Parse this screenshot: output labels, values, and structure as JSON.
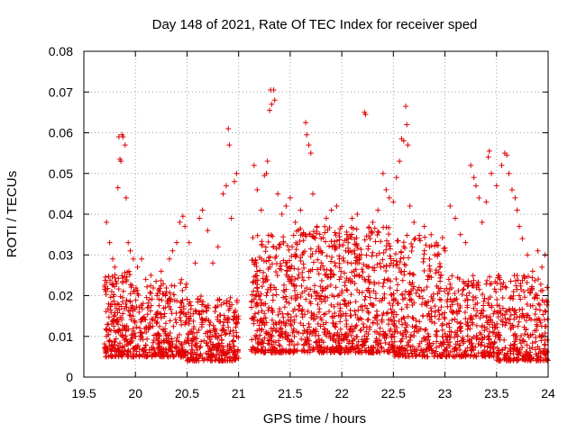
{
  "chart_data": {
    "type": "scatter",
    "title": "Day 148 of 2021, Rate Of TEC Index for receiver sped",
    "xlabel": "GPS time / hours",
    "ylabel": "ROTI / TECUs",
    "xlim": [
      19.5,
      24
    ],
    "ylim": [
      0,
      0.08
    ],
    "xticks": [
      19.5,
      20,
      20.5,
      21,
      21.5,
      22,
      22.5,
      23,
      23.5,
      24
    ],
    "xtick_labels": [
      "19.5",
      "20",
      "20.5",
      "21",
      "21.5",
      "22",
      "22.5",
      "23",
      "23.5",
      "24"
    ],
    "yticks": [
      0,
      0.01,
      0.02,
      0.03,
      0.04,
      0.05,
      0.06,
      0.07,
      0.08
    ],
    "ytick_labels": [
      "0",
      "0.01",
      "0.02",
      "0.03",
      "0.04",
      "0.05",
      "0.06",
      "0.07",
      "0.08"
    ],
    "grid": true,
    "marker": "+",
    "color": "#e00000",
    "gap": [
      21.0,
      21.12
    ],
    "series": [
      {
        "name": "ROTI",
        "points": [
          [
            19.72,
            0.038
          ],
          [
            19.75,
            0.033
          ],
          [
            19.78,
            0.029
          ],
          [
            19.8,
            0.027
          ],
          [
            19.83,
            0.0465
          ],
          [
            19.84,
            0.059
          ],
          [
            19.85,
            0.0535
          ],
          [
            19.86,
            0.053
          ],
          [
            19.87,
            0.0595
          ],
          [
            19.88,
            0.059
          ],
          [
            19.9,
            0.057
          ],
          [
            19.91,
            0.044
          ],
          [
            19.93,
            0.033
          ],
          [
            19.95,
            0.031
          ],
          [
            19.98,
            0.029
          ],
          [
            20.02,
            0.027
          ],
          [
            20.06,
            0.029
          ],
          [
            20.1,
            0.024
          ],
          [
            20.15,
            0.025
          ],
          [
            20.2,
            0.0235
          ],
          [
            20.25,
            0.026
          ],
          [
            20.3,
            0.021
          ],
          [
            20.33,
            0.029
          ],
          [
            20.36,
            0.031
          ],
          [
            20.4,
            0.033
          ],
          [
            20.43,
            0.038
          ],
          [
            20.46,
            0.0395
          ],
          [
            20.48,
            0.037
          ],
          [
            20.52,
            0.033
          ],
          [
            20.58,
            0.028
          ],
          [
            20.62,
            0.039
          ],
          [
            20.65,
            0.041
          ],
          [
            20.7,
            0.036
          ],
          [
            20.75,
            0.028
          ],
          [
            20.8,
            0.032
          ],
          [
            20.85,
            0.045
          ],
          [
            20.88,
            0.047
          ],
          [
            20.9,
            0.061
          ],
          [
            20.91,
            0.057
          ],
          [
            20.93,
            0.039
          ],
          [
            20.96,
            0.048
          ],
          [
            20.98,
            0.05
          ],
          [
            21.15,
            0.052
          ],
          [
            21.18,
            0.046
          ],
          [
            21.22,
            0.041
          ],
          [
            21.25,
            0.0495
          ],
          [
            21.27,
            0.05
          ],
          [
            21.28,
            0.053
          ],
          [
            21.3,
            0.0655
          ],
          [
            21.31,
            0.0705
          ],
          [
            21.32,
            0.067
          ],
          [
            21.34,
            0.0705
          ],
          [
            21.35,
            0.068
          ],
          [
            21.38,
            0.045
          ],
          [
            21.42,
            0.04
          ],
          [
            21.46,
            0.042
          ],
          [
            21.5,
            0.044
          ],
          [
            21.55,
            0.038
          ],
          [
            21.6,
            0.041
          ],
          [
            21.65,
            0.0625
          ],
          [
            21.66,
            0.0595
          ],
          [
            21.68,
            0.057
          ],
          [
            21.7,
            0.055
          ],
          [
            21.72,
            0.045
          ],
          [
            21.76,
            0.037
          ],
          [
            21.8,
            0.034
          ],
          [
            21.85,
            0.039
          ],
          [
            21.9,
            0.041
          ],
          [
            21.95,
            0.042
          ],
          [
            22.0,
            0.037
          ],
          [
            22.05,
            0.035
          ],
          [
            22.1,
            0.039
          ],
          [
            22.15,
            0.04
          ],
          [
            22.22,
            0.065
          ],
          [
            22.23,
            0.0645
          ],
          [
            22.3,
            0.038
          ],
          [
            22.35,
            0.041
          ],
          [
            22.4,
            0.05
          ],
          [
            22.43,
            0.046
          ],
          [
            22.46,
            0.044
          ],
          [
            22.5,
            0.043
          ],
          [
            22.53,
            0.049
          ],
          [
            22.56,
            0.053
          ],
          [
            22.58,
            0.0585
          ],
          [
            22.6,
            0.058
          ],
          [
            22.62,
            0.0665
          ],
          [
            22.63,
            0.062
          ],
          [
            22.64,
            0.057
          ],
          [
            22.66,
            0.042
          ],
          [
            22.7,
            0.038
          ],
          [
            22.75,
            0.034
          ],
          [
            22.8,
            0.037
          ],
          [
            22.85,
            0.032
          ],
          [
            22.9,
            0.03
          ],
          [
            22.95,
            0.027
          ],
          [
            23.0,
            0.031
          ],
          [
            23.05,
            0.042
          ],
          [
            23.1,
            0.039
          ],
          [
            23.15,
            0.035
          ],
          [
            23.2,
            0.033
          ],
          [
            23.25,
            0.052
          ],
          [
            23.28,
            0.049
          ],
          [
            23.3,
            0.047
          ],
          [
            23.33,
            0.044
          ],
          [
            23.36,
            0.038
          ],
          [
            23.4,
            0.043
          ],
          [
            23.42,
            0.054
          ],
          [
            23.43,
            0.0555
          ],
          [
            23.45,
            0.05
          ],
          [
            23.5,
            0.047
          ],
          [
            23.55,
            0.052
          ],
          [
            23.58,
            0.055
          ],
          [
            23.6,
            0.0545
          ],
          [
            23.62,
            0.05
          ],
          [
            23.65,
            0.046
          ],
          [
            23.68,
            0.044
          ],
          [
            23.7,
            0.041
          ],
          [
            23.72,
            0.037
          ],
          [
            23.75,
            0.034
          ],
          [
            23.8,
            0.03
          ],
          [
            23.85,
            0.026
          ],
          [
            23.9,
            0.031
          ],
          [
            23.94,
            0.027
          ],
          [
            23.97,
            0.03
          ],
          [
            23.99,
            0.022
          ]
        ],
        "bands": [
          {
            "x": [
              19.7,
              20.0
            ],
            "y": [
              0.005,
              0.026
            ],
            "count": 240
          },
          {
            "x": [
              20.0,
              20.5
            ],
            "y": [
              0.005,
              0.024
            ],
            "count": 300
          },
          {
            "x": [
              20.5,
              21.0
            ],
            "y": [
              0.004,
              0.02
            ],
            "count": 320
          },
          {
            "x": [
              21.12,
              21.5
            ],
            "y": [
              0.006,
              0.035
            ],
            "count": 300
          },
          {
            "x": [
              21.5,
              22.0
            ],
            "y": [
              0.006,
              0.037
            ],
            "count": 380
          },
          {
            "x": [
              22.0,
              22.5
            ],
            "y": [
              0.006,
              0.037
            ],
            "count": 380
          },
          {
            "x": [
              22.5,
              23.0
            ],
            "y": [
              0.005,
              0.035
            ],
            "count": 340
          },
          {
            "x": [
              23.0,
              23.5
            ],
            "y": [
              0.005,
              0.025
            ],
            "count": 300
          },
          {
            "x": [
              23.5,
              24.0
            ],
            "y": [
              0.004,
              0.025
            ],
            "count": 320
          }
        ]
      }
    ]
  }
}
